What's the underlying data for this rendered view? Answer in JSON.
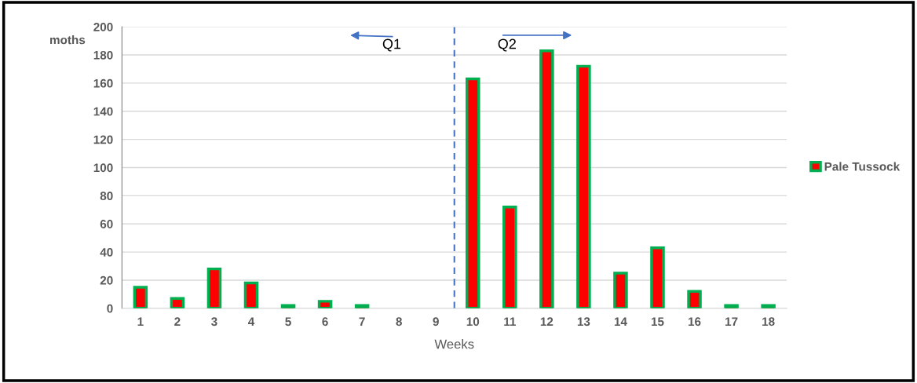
{
  "chart_data": {
    "type": "bar",
    "xlabel": "Weeks",
    "ylabel": "moths",
    "x": [
      1,
      2,
      3,
      4,
      5,
      6,
      7,
      8,
      9,
      10,
      11,
      12,
      13,
      14,
      15,
      16,
      17,
      18
    ],
    "series": [
      {
        "name": "Pale Tussock",
        "color": "#ff0000",
        "values": [
          15,
          7,
          28,
          18,
          2,
          5,
          2,
          0,
          0,
          163,
          72,
          183,
          172,
          25,
          43,
          12,
          2,
          2
        ]
      }
    ],
    "xlim": [
      0.5,
      18.5
    ],
    "xticks": [
      1,
      2,
      3,
      4,
      5,
      6,
      7,
      8,
      9,
      10,
      11,
      12,
      13,
      14,
      15,
      16,
      17,
      18
    ],
    "ylim": [
      0,
      200
    ],
    "yticks": [
      0,
      20,
      40,
      60,
      80,
      100,
      120,
      140,
      160,
      180,
      200
    ],
    "grid": "y",
    "legend": "right",
    "ref_lines": [
      {
        "axis": "x",
        "value": 9.5,
        "color": "#4472c4",
        "line_style": "dashed"
      }
    ],
    "annotations": [
      "Q1",
      "Q2"
    ]
  }
}
